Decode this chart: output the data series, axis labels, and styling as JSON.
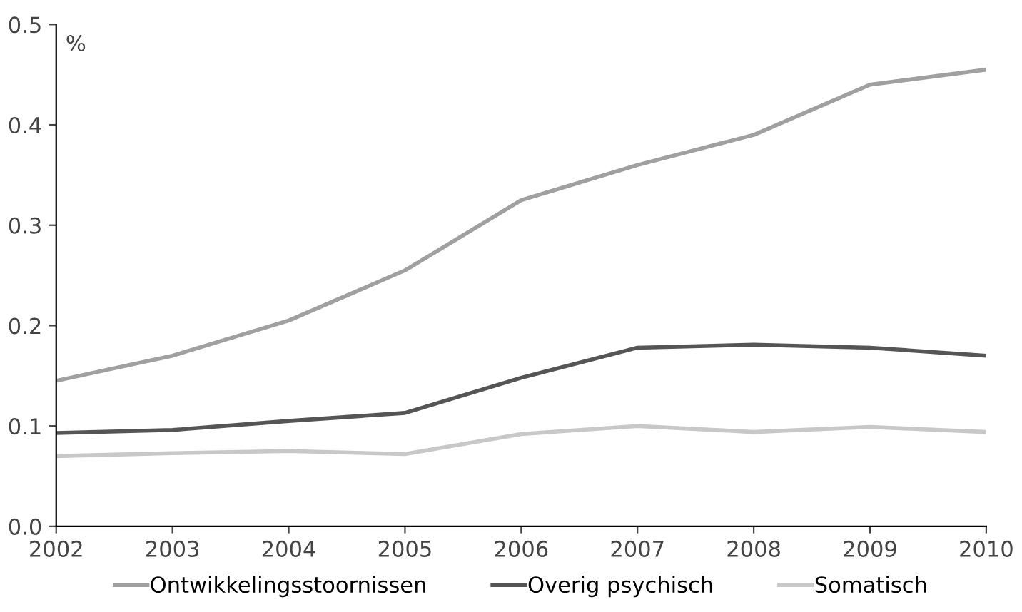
{
  "chart_data": {
    "type": "line",
    "ylabel": "%",
    "x": [
      2002,
      2003,
      2004,
      2005,
      2006,
      2007,
      2008,
      2009,
      2010
    ],
    "series": [
      {
        "name": "Ontwikkelingsstoornissen",
        "color": "#a0a0a0",
        "values": [
          0.145,
          0.17,
          0.205,
          0.255,
          0.325,
          0.36,
          0.39,
          0.44,
          0.455
        ]
      },
      {
        "name": "Overig psychisch",
        "color": "#555555",
        "values": [
          0.093,
          0.096,
          0.105,
          0.113,
          0.148,
          0.178,
          0.181,
          0.178,
          0.17
        ]
      },
      {
        "name": "Somatisch",
        "color": "#c8c8c8",
        "values": [
          0.07,
          0.073,
          0.075,
          0.072,
          0.092,
          0.1,
          0.094,
          0.099,
          0.094
        ]
      }
    ],
    "xlim": [
      2002,
      2010
    ],
    "xticks": [
      2002,
      2003,
      2004,
      2005,
      2006,
      2007,
      2008,
      2009,
      2010
    ],
    "ylim": [
      0,
      0.5
    ],
    "yticks": [
      {
        "value": 0,
        "label": "0.0"
      },
      {
        "value": 0.1,
        "label": "0.1"
      },
      {
        "value": 0.2,
        "label": "0.2"
      },
      {
        "value": 0.3,
        "label": "0.3"
      },
      {
        "value": 0.4,
        "label": "0.4"
      },
      {
        "value": 0.5,
        "label": "0.5"
      }
    ],
    "grid": false,
    "legend": "bottom",
    "marker": "none",
    "line_style": "solid"
  }
}
